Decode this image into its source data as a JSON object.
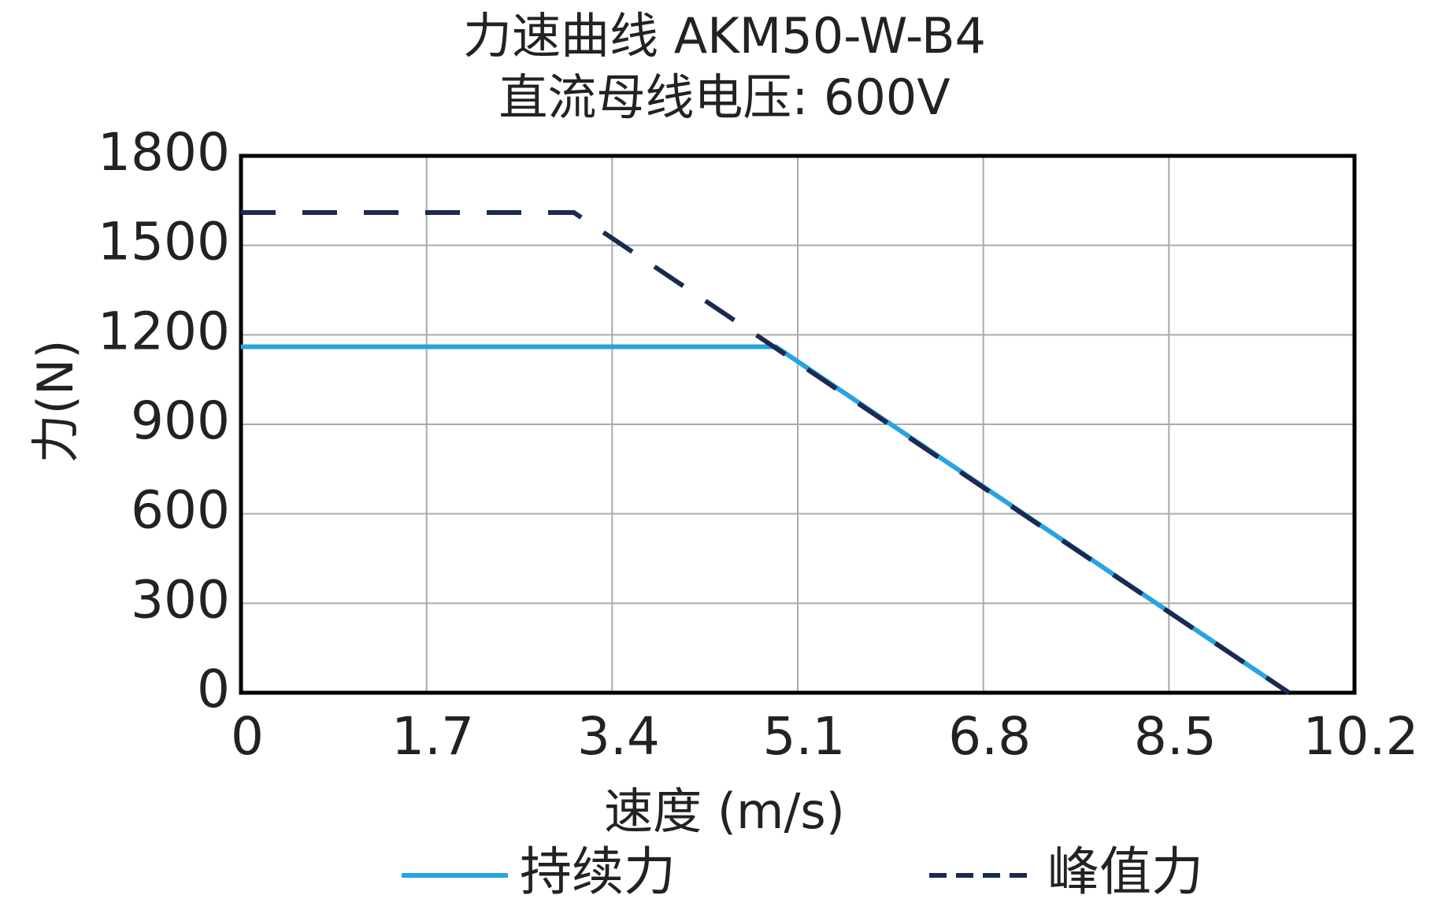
{
  "chart_data": {
    "type": "line",
    "title": "力速曲线 AKM50-W-B4",
    "subtitle": "直流母线电压: 600V",
    "x_label": "速度 (m/s)",
    "y_label": "力(N)",
    "xlim": [
      0,
      10.2
    ],
    "xticks": [
      0,
      1.7,
      3.4,
      5.1,
      6.8,
      8.5,
      10.2
    ],
    "ylim": [
      0,
      1800
    ],
    "yticks": [
      0,
      300,
      600,
      900,
      1200,
      1500,
      1800
    ],
    "grid": true,
    "legend": "bottom",
    "series": [
      {
        "name": "持续力",
        "color": "#29a3e0",
        "dash": false,
        "x": [
          0,
          4.9,
          9.6
        ],
        "values": [
          1160,
          1160,
          0
        ]
      },
      {
        "name": "峰值力",
        "color": "#1a2a50",
        "dash": true,
        "x": [
          0,
          3.05,
          9.6
        ],
        "values": [
          1610,
          1610,
          0
        ]
      }
    ]
  }
}
